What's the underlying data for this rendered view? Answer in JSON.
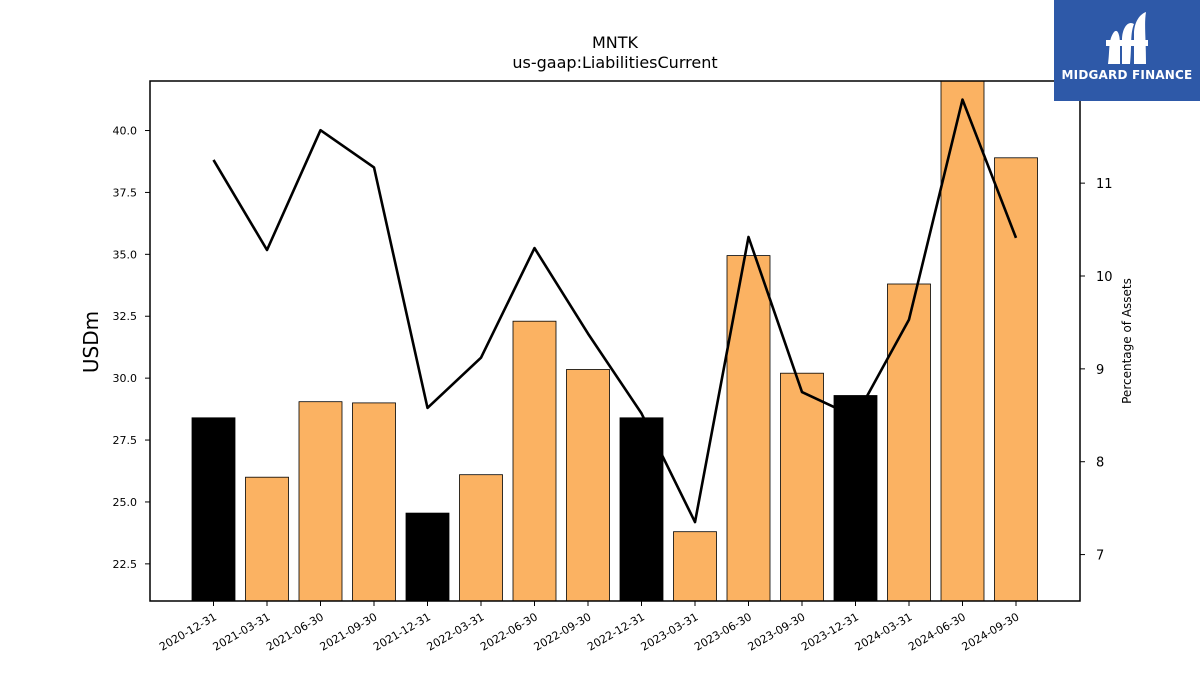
{
  "chart_data": {
    "type": "bar",
    "title": "MNTK",
    "subtitle": "us-gaap:LiabilitiesCurrent",
    "ylabel": "USDm",
    "y2label": "Percentage of Assets",
    "categories": [
      "2020-12-31",
      "2021-03-31",
      "2021-06-30",
      "2021-09-30",
      "2021-12-31",
      "2022-03-31",
      "2022-06-30",
      "2022-09-30",
      "2022-12-31",
      "2023-03-31",
      "2023-06-30",
      "2023-09-30",
      "2023-12-31",
      "2024-03-31",
      "2024-06-30",
      "2024-09-30"
    ],
    "series": [
      {
        "type": "bar",
        "axis": "left",
        "values": [
          28.4,
          26.0,
          29.05,
          29.0,
          24.55,
          26.1,
          32.3,
          30.35,
          28.4,
          23.8,
          34.95,
          30.2,
          29.3,
          33.8,
          42.0,
          38.9
        ],
        "highlight": [
          true,
          false,
          false,
          false,
          true,
          false,
          false,
          false,
          true,
          false,
          false,
          false,
          true,
          false,
          false,
          false
        ],
        "color": "#fbb262",
        "highlight_color": "#000000"
      },
      {
        "type": "line",
        "axis": "right",
        "values": [
          11.25,
          10.28,
          11.57,
          11.17,
          8.58,
          9.12,
          10.3,
          9.38,
          8.52,
          7.35,
          10.42,
          8.75,
          8.48,
          9.53,
          11.9,
          10.41
        ],
        "color": "#000000"
      }
    ],
    "ylim": [
      21.0,
      42.0
    ],
    "yticks": [
      "22.5",
      "25.0",
      "27.5",
      "30.0",
      "32.5",
      "35.0",
      "37.5",
      "40.0"
    ],
    "y2lim": [
      6.5,
      12.1
    ],
    "y2ticks": [
      "7",
      "8",
      "9",
      "10",
      "11"
    ],
    "grid": false
  },
  "logo": {
    "text": "MIDGARD FINANCE",
    "color": "#2e59a8"
  }
}
